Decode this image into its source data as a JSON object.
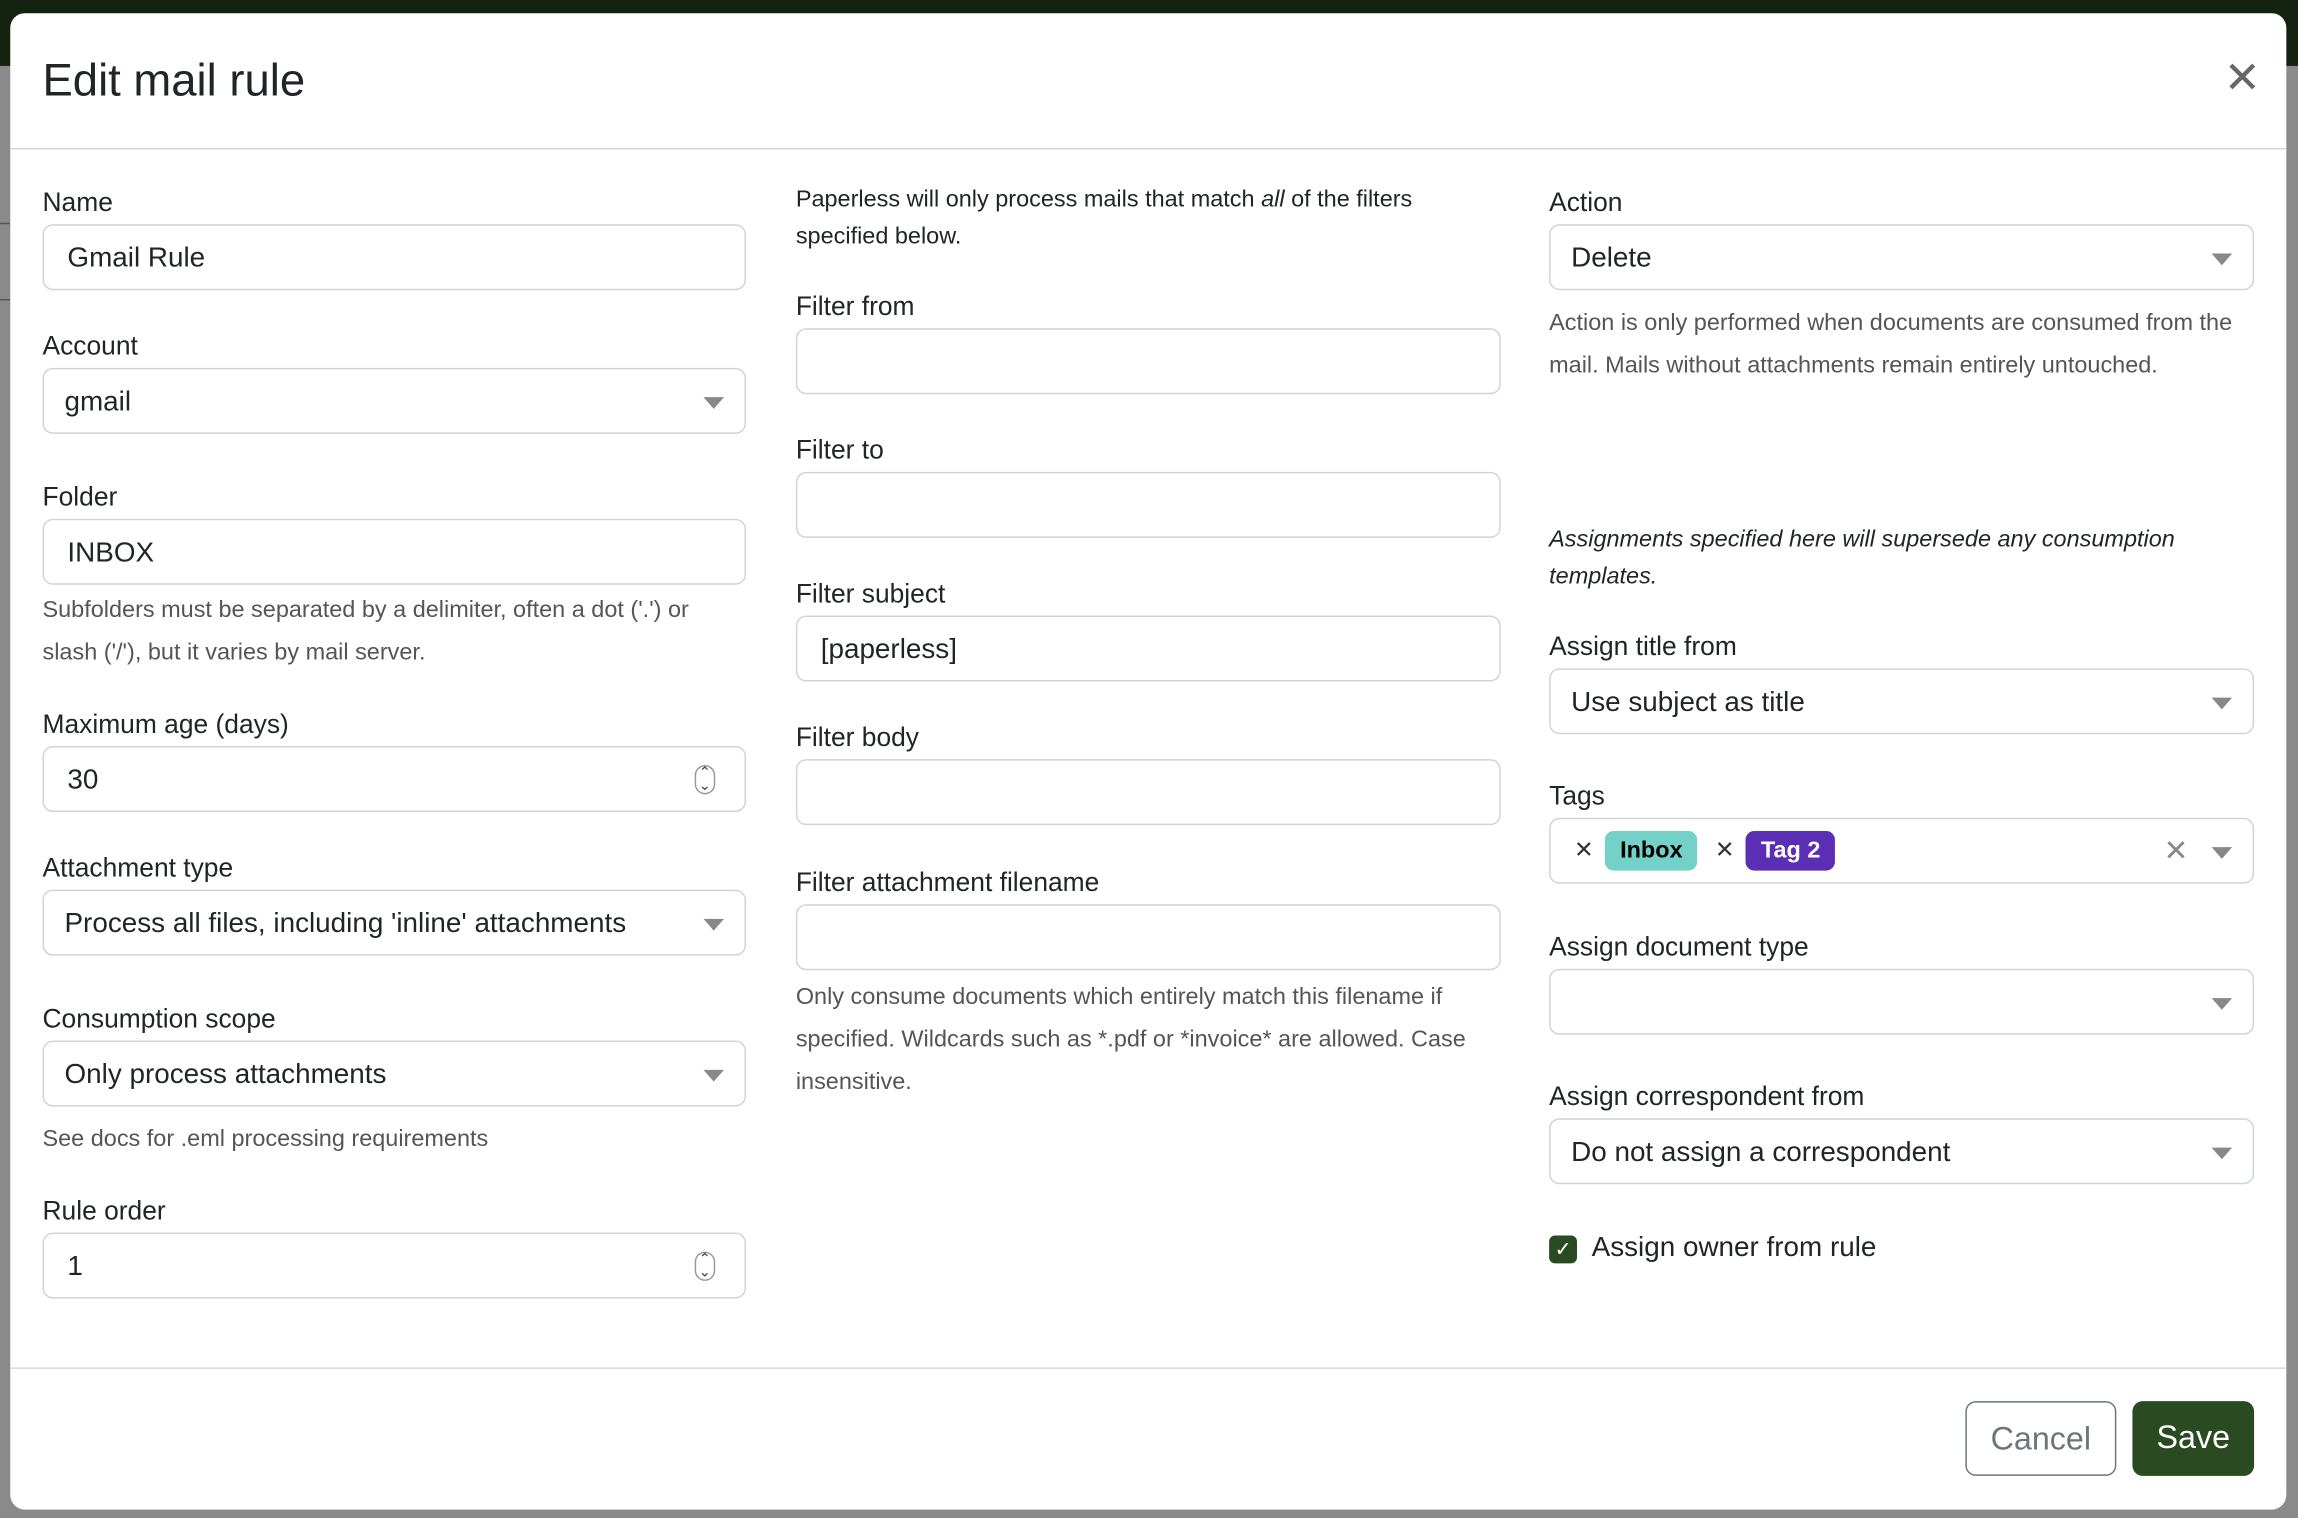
{
  "dialog": {
    "title": "Edit mail rule",
    "close_icon": "close-icon"
  },
  "col1": {
    "name": {
      "label": "Name",
      "value": "Gmail Rule"
    },
    "account": {
      "label": "Account",
      "value": "gmail"
    },
    "folder": {
      "label": "Folder",
      "value": "INBOX",
      "help": "Subfolders must be separated by a delimiter, often a dot ('.') or slash ('/'), but it varies by mail server."
    },
    "max_age": {
      "label": "Maximum age (days)",
      "value": "30"
    },
    "attachment_type": {
      "label": "Attachment type",
      "value": "Process all files, including 'inline' attachments"
    },
    "consumption_scope": {
      "label": "Consumption scope",
      "value": "Only process attachments",
      "help": "See docs for .eml processing requirements"
    },
    "rule_order": {
      "label": "Rule order",
      "value": "1"
    }
  },
  "col2": {
    "intro_pre": "Paperless will only process mails that match ",
    "intro_em": "all",
    "intro_post": " of the filters specified below.",
    "filter_from": {
      "label": "Filter from",
      "value": ""
    },
    "filter_to": {
      "label": "Filter to",
      "value": ""
    },
    "filter_subject": {
      "label": "Filter subject",
      "value": "[paperless]"
    },
    "filter_body": {
      "label": "Filter body",
      "value": ""
    },
    "filter_attachment": {
      "label": "Filter attachment filename",
      "value": "",
      "help": "Only consume documents which entirely match this filename if specified. Wildcards such as *.pdf or *invoice* are allowed. Case insensitive."
    }
  },
  "col3": {
    "action": {
      "label": "Action",
      "value": "Delete",
      "help": "Action is only performed when documents are consumed from the mail. Mails without attachments remain entirely untouched."
    },
    "assign_note": "Assignments specified here will supersede any consumption templates.",
    "assign_title": {
      "label": "Assign title from",
      "value": "Use subject as title"
    },
    "tags": {
      "label": "Tags",
      "items": [
        {
          "name": "Inbox",
          "bg": "#73d1c8",
          "fg": "#000000"
        },
        {
          "name": "Tag 2",
          "bg": "#5a2eb5",
          "fg": "#ffffff"
        }
      ]
    },
    "doc_type": {
      "label": "Assign document type",
      "value": ""
    },
    "correspondent": {
      "label": "Assign correspondent from",
      "value": "Do not assign a correspondent"
    },
    "owner": {
      "label": "Assign owner from rule",
      "checked": true
    }
  },
  "footer": {
    "cancel": "Cancel",
    "save": "Save"
  },
  "colors": {
    "primary": "#2a4a22",
    "topbar": "#14230f"
  }
}
